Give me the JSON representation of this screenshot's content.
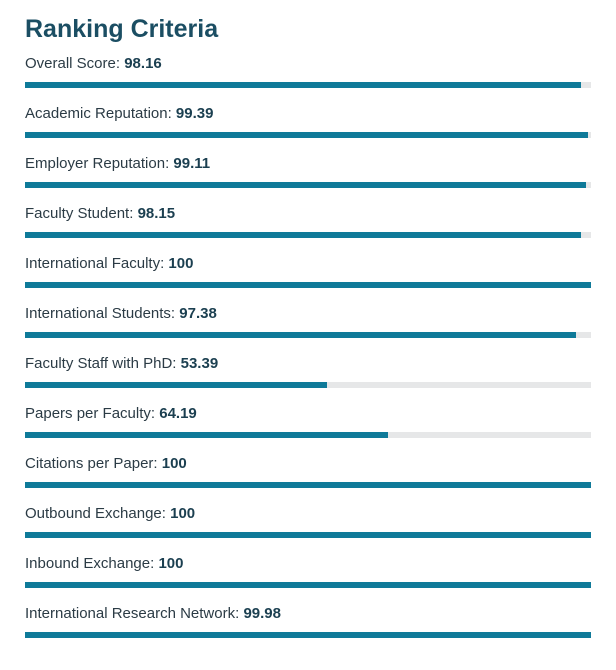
{
  "title": "Ranking Criteria",
  "colors": {
    "accent": "#0f7a99",
    "track": "#e6e7e8",
    "title": "#1b4e63"
  },
  "criteria": [
    {
      "label": "Overall Score:",
      "value": "98.16",
      "percent": 98.16
    },
    {
      "label": "Academic Reputation:",
      "value": "99.39",
      "percent": 99.39
    },
    {
      "label": "Employer Reputation:",
      "value": "99.11",
      "percent": 99.11
    },
    {
      "label": "Faculty Student:",
      "value": "98.15",
      "percent": 98.15
    },
    {
      "label": "International Faculty:",
      "value": "100",
      "percent": 100
    },
    {
      "label": "International Students:",
      "value": "97.38",
      "percent": 97.38
    },
    {
      "label": "Faculty Staff with PhD:",
      "value": "53.39",
      "percent": 53.39
    },
    {
      "label": "Papers per Faculty:",
      "value": "64.19",
      "percent": 64.19
    },
    {
      "label": "Citations per Paper:",
      "value": "100",
      "percent": 100
    },
    {
      "label": "Outbound Exchange:",
      "value": "100",
      "percent": 100
    },
    {
      "label": "Inbound Exchange:",
      "value": "100",
      "percent": 100
    },
    {
      "label": "International Research Network:",
      "value": "99.98",
      "percent": 99.98
    }
  ]
}
